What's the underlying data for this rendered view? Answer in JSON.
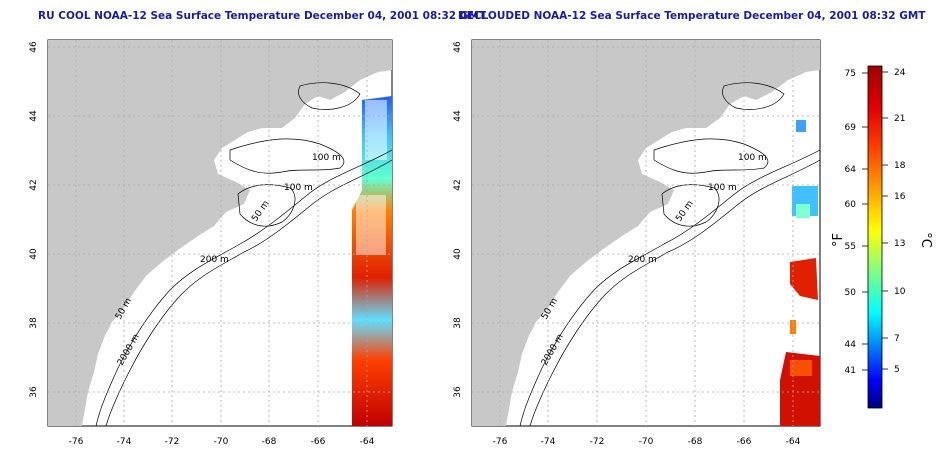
{
  "maps": [
    {
      "title": "RU COOL NOAA-12 Sea Surface Temperature December 04, 2001 08:32 GMT",
      "contour_labels": [
        "100 m",
        "100 m",
        "50 m",
        "200 m",
        "50 m",
        "2000 m"
      ]
    },
    {
      "title": "DECLOUDED NOAA-12 Sea Surface Temperature December 04, 2001 08:32 GMT",
      "contour_labels": [
        "100 m",
        "100 m",
        "50 m",
        "200 m",
        "50 m",
        "2000 m"
      ]
    }
  ],
  "axes": {
    "lon_ticks": [
      "-76",
      "-74",
      "-72",
      "-70",
      "-68",
      "-66",
      "-64"
    ],
    "lat_ticks": [
      "46",
      "44",
      "42",
      "40",
      "38",
      "36"
    ]
  },
  "colorbar": {
    "fahrenheit_ticks": [
      "75",
      "69",
      "64",
      "60",
      "55",
      "50",
      "44",
      "41"
    ],
    "celsius_ticks": [
      "24",
      "21",
      "18",
      "16",
      "13",
      "10",
      "7",
      "5"
    ],
    "fahrenheit_label": "°F",
    "celsius_label": "°C",
    "colors": [
      "#000080",
      "#0000ff",
      "#0080ff",
      "#00c0ff",
      "#00ffff",
      "#40ffc0",
      "#80ff80",
      "#c0ff40",
      "#ffff00",
      "#ffc000",
      "#ff8000",
      "#ff4000",
      "#e00000",
      "#a00000"
    ]
  },
  "colors": {
    "land": "#c8c8c8",
    "title": "#1a1aa8",
    "contour": "#000000",
    "grid": "#aaaaaa"
  }
}
